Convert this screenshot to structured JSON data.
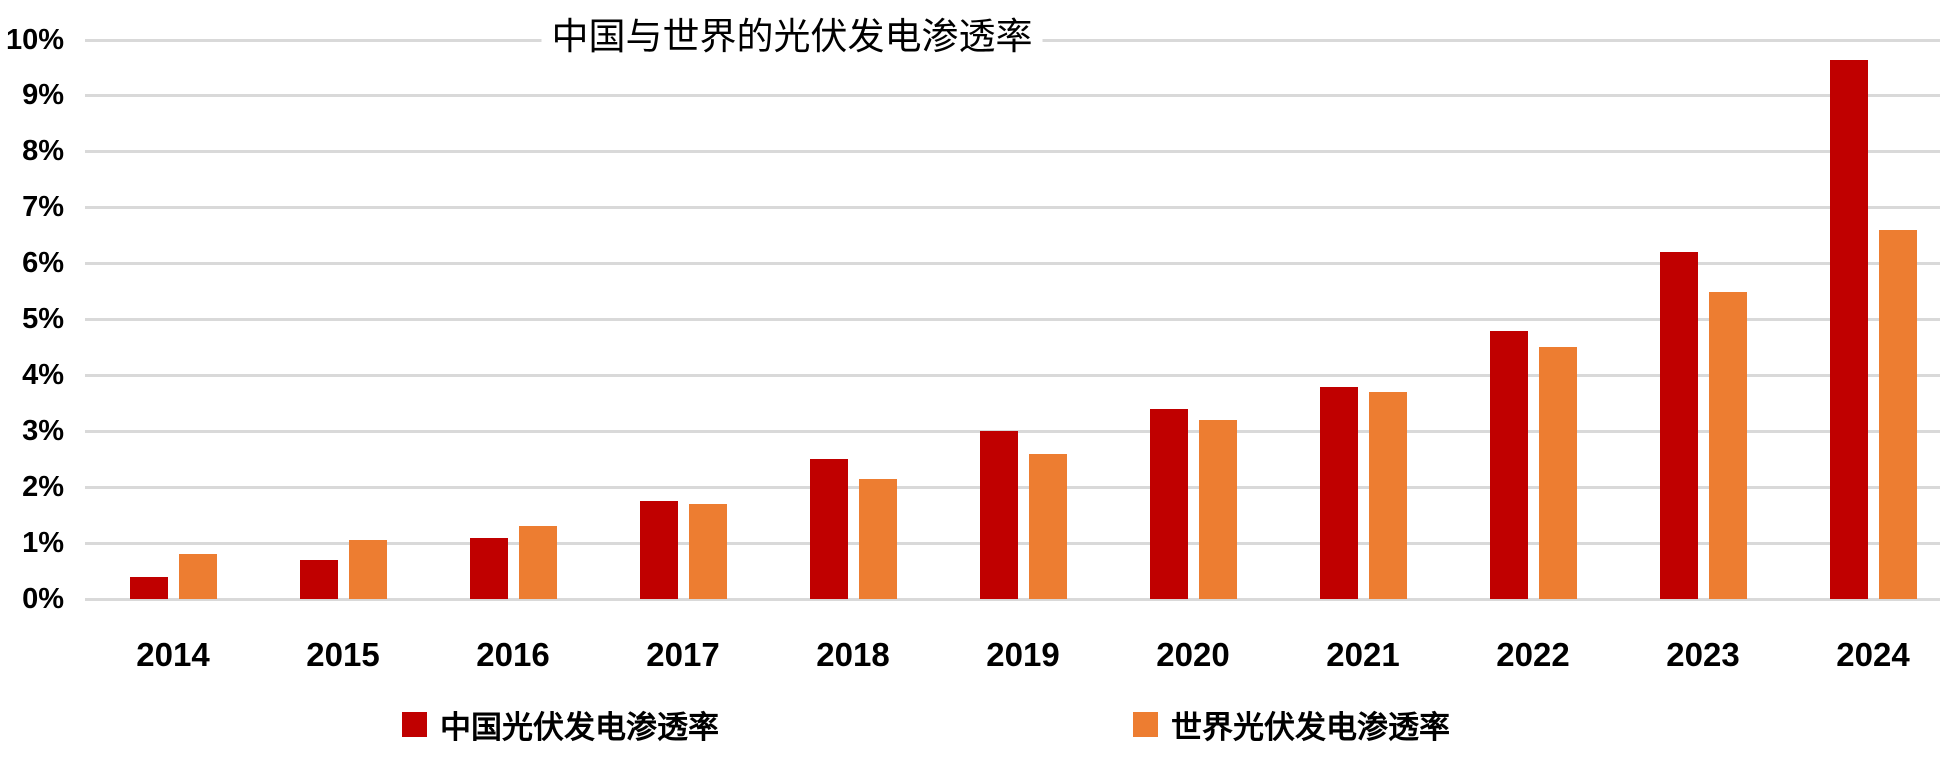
{
  "chart_data": {
    "type": "bar",
    "title": "中国与世界的光伏发电渗透率",
    "categories": [
      "2014",
      "2015",
      "2016",
      "2017",
      "2018",
      "2019",
      "2020",
      "2021",
      "2022",
      "2023",
      "2024"
    ],
    "series": [
      {
        "name": "中国光伏发电渗透率",
        "color": "#C00000",
        "values": [
          0.4,
          0.7,
          1.1,
          1.75,
          2.5,
          3.0,
          3.4,
          3.8,
          4.8,
          6.2,
          9.65
        ]
      },
      {
        "name": "世界光伏发电渗透率",
        "color": "#ED7D31",
        "values": [
          0.8,
          1.05,
          1.3,
          1.7,
          2.15,
          2.6,
          3.2,
          3.7,
          4.5,
          5.5,
          6.6
        ]
      }
    ],
    "xlabel": "",
    "ylabel": "",
    "ylim": [
      0,
      10
    ],
    "ytick_labels": [
      "0%",
      "1%",
      "2%",
      "3%",
      "4%",
      "5%",
      "6%",
      "7%",
      "8%",
      "9%",
      "10%"
    ],
    "grid": true,
    "legend_position": "bottom",
    "colors": {
      "grid": "#D9D9D9",
      "text": "#000000",
      "background": "#FFFFFF"
    }
  }
}
